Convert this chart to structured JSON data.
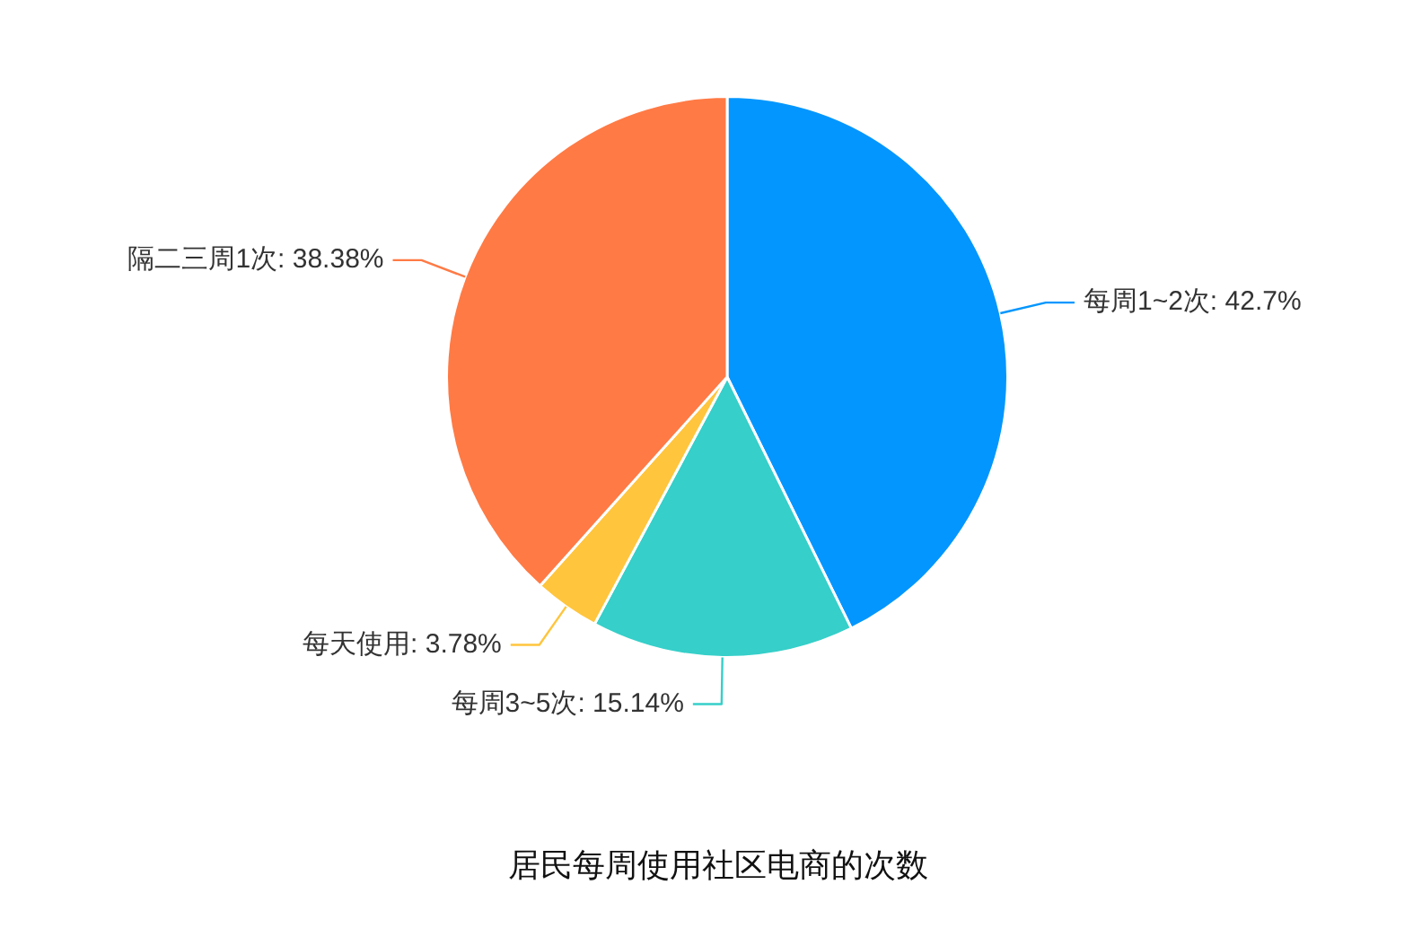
{
  "chart_data": {
    "type": "pie",
    "title": "居民每周使用社区电商的次数",
    "categories": [
      "每周1~2次",
      "每周3~5次",
      "每天使用",
      "隔二三周1次"
    ],
    "values": [
      42.7,
      15.14,
      3.78,
      38.38
    ],
    "value_labels": [
      "42.7%",
      "15.14%",
      "3.78%",
      "38.38%"
    ],
    "colors": [
      "#0396ff",
      "#36cfc9",
      "#ffc53d",
      "#ff7a45"
    ],
    "legend": false
  }
}
